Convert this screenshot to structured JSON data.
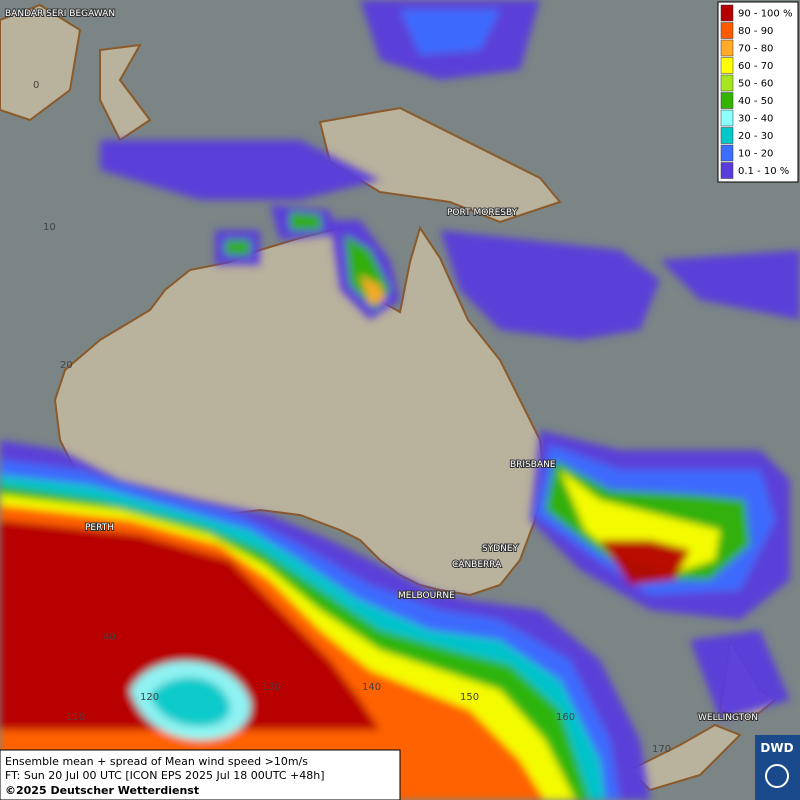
{
  "map": {
    "legend": [
      {
        "label": "90 - 100 %",
        "color": "#b40000"
      },
      {
        "label": "80 - 90",
        "color": "#ff5a00"
      },
      {
        "label": "70 - 80",
        "color": "#ffaa28"
      },
      {
        "label": "60 - 70",
        "color": "#ffff00"
      },
      {
        "label": "50 - 60",
        "color": "#a8e620"
      },
      {
        "label": "40 - 50",
        "color": "#32b400"
      },
      {
        "label": "30 - 40",
        "color": "#8cffff"
      },
      {
        "label": "20 - 30",
        "color": "#00c8c8"
      },
      {
        "label": "10 - 20",
        "color": "#3c6eff"
      },
      {
        "label": "0.1 - 10 %",
        "color": "#5a3cdc"
      }
    ],
    "cities": [
      "BANDAR SERI BEGAWAN",
      "PORT MORESBY",
      "BRISBANE",
      "PERTH",
      "SYDNEY",
      "CANBERRA",
      "MELBOURNE",
      "WELLINGTON"
    ],
    "grid_labels": [
      0,
      10,
      20,
      40,
      110,
      120,
      130,
      140,
      150,
      160,
      170
    ],
    "footer": {
      "line1": "Ensemble mean + spread of Mean wind speed >10m/s",
      "line2": "FT: Sun 20 Jul 00 UTC [ICON EPS 2025 Jul 18 00UTC +48h]",
      "copyright": "©2025 Deutscher Wetterdienst"
    },
    "logo": "DWD"
  }
}
